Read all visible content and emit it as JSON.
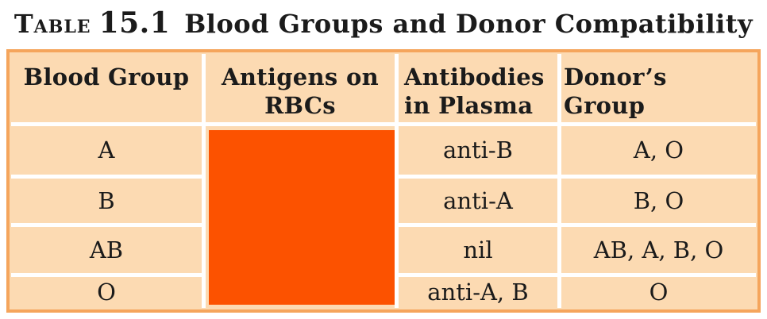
{
  "caption": {
    "label": "Table",
    "number": "15.1",
    "title": "Blood Groups and Donor Compatibility"
  },
  "table": {
    "headers": {
      "blood_group": "Blood Group",
      "antigens": "Antigens on RBCs",
      "antibodies": "Antibodies in Plasma",
      "donors": "Donor’s Group"
    },
    "rows": [
      {
        "blood_group": "A",
        "antibodies": "anti-B",
        "donors": "A, O"
      },
      {
        "blood_group": "B",
        "antibodies": "anti-A",
        "donors": "B, O"
      },
      {
        "blood_group": "AB",
        "antibodies": "nil",
        "donors": "AB, A, B, O"
      },
      {
        "blood_group": "O",
        "antibodies": "anti-A, B",
        "donors": "O"
      }
    ]
  },
  "colors": {
    "cell_background": "#FCDAB2",
    "table_border": "#F5A55C",
    "gridline": "#FFFFFF",
    "antigen_block": "#FC5200",
    "text": "#1B1B1B"
  }
}
